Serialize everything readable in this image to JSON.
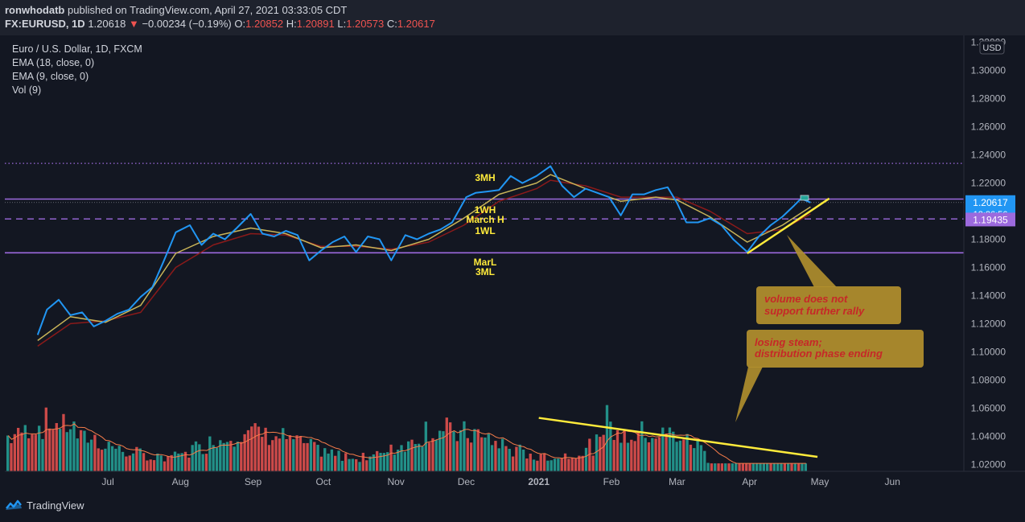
{
  "header": {
    "author": "ronwhodatb",
    "published": " published on TradingView.com, April 27, 2021 03:33:05 CDT",
    "symbol": "FX:EURUSD, 1D",
    "last": "1.20618",
    "arrow": "▼",
    "change": "−0.00234 (−0.19%)",
    "o_label": "O:",
    "o": "1.20852",
    "h_label": "H:",
    "h": "1.20891",
    "l_label": "L:",
    "l": "1.20573",
    "c_label": "C:",
    "c": "1.20617"
  },
  "legend": {
    "title": "Euro / U.S. Dollar, 1D, FXCM",
    "ema18": "EMA (18, close, 0)",
    "ema9": "EMA (9, close, 0)",
    "vol": "Vol (9)"
  },
  "footer": {
    "brand": "TradingView"
  },
  "colors": {
    "background": "#131722",
    "price": "#2196f3",
    "ema9": "#c9b458",
    "ema18": "#8b1a1a",
    "vol_up": "#26a69a",
    "vol_down": "#ef5350",
    "level": "#9c6ade",
    "trend": "#ffeb3b",
    "callout": "#b3902e",
    "callout_text": "#c62828"
  },
  "chart_data": {
    "type": "line",
    "title": "Euro / U.S. Dollar, 1D, FXCM",
    "currency_badge": "USD",
    "x_tick_labels": [
      "Jul",
      "Aug",
      "Sep",
      "Oct",
      "Nov",
      "Dec",
      "2021",
      "Feb",
      "Mar",
      "Apr",
      "May",
      "Jun"
    ],
    "y_tick_labels": [
      "1.32000",
      "1.30000",
      "1.28000",
      "1.26000",
      "1.24000",
      "1.22000",
      "1.20000",
      "1.18000",
      "1.16000",
      "1.14000",
      "1.12000",
      "1.10000",
      "1.08000",
      "1.06000",
      "1.04000",
      "1.02000"
    ],
    "ylim": [
      1.015,
      1.325
    ],
    "price_series": {
      "name": "EURUSD",
      "points": [
        [
          "2020-06-01",
          1.112
        ],
        [
          "2020-06-05",
          1.13
        ],
        [
          "2020-06-10",
          1.137
        ],
        [
          "2020-06-15",
          1.126
        ],
        [
          "2020-06-20",
          1.128
        ],
        [
          "2020-06-25",
          1.118
        ],
        [
          "2020-06-30",
          1.122
        ],
        [
          "2020-07-05",
          1.127
        ],
        [
          "2020-07-10",
          1.13
        ],
        [
          "2020-07-15",
          1.139
        ],
        [
          "2020-07-20",
          1.146
        ],
        [
          "2020-07-25",
          1.165
        ],
        [
          "2020-07-30",
          1.185
        ],
        [
          "2020-08-05",
          1.19
        ],
        [
          "2020-08-10",
          1.176
        ],
        [
          "2020-08-15",
          1.184
        ],
        [
          "2020-08-20",
          1.18
        ],
        [
          "2020-08-25",
          1.188
        ],
        [
          "2020-08-31",
          1.198
        ],
        [
          "2020-09-05",
          1.184
        ],
        [
          "2020-09-10",
          1.182
        ],
        [
          "2020-09-15",
          1.186
        ],
        [
          "2020-09-20",
          1.183
        ],
        [
          "2020-09-25",
          1.165
        ],
        [
          "2020-09-30",
          1.172
        ],
        [
          "2020-10-05",
          1.178
        ],
        [
          "2020-10-10",
          1.182
        ],
        [
          "2020-10-15",
          1.171
        ],
        [
          "2020-10-20",
          1.182
        ],
        [
          "2020-10-25",
          1.18
        ],
        [
          "2020-10-30",
          1.165
        ],
        [
          "2020-11-05",
          1.183
        ],
        [
          "2020-11-10",
          1.18
        ],
        [
          "2020-11-15",
          1.184
        ],
        [
          "2020-11-20",
          1.187
        ],
        [
          "2020-11-25",
          1.192
        ],
        [
          "2020-12-01",
          1.21
        ],
        [
          "2020-12-05",
          1.213
        ],
        [
          "2020-12-10",
          1.214
        ],
        [
          "2020-12-15",
          1.215
        ],
        [
          "2020-12-20",
          1.225
        ],
        [
          "2020-12-25",
          1.22
        ],
        [
          "2020-12-31",
          1.225
        ],
        [
          "2021-01-06",
          1.232
        ],
        [
          "2021-01-11",
          1.218
        ],
        [
          "2021-01-16",
          1.21
        ],
        [
          "2021-01-21",
          1.216
        ],
        [
          "2021-01-26",
          1.213
        ],
        [
          "2021-01-31",
          1.21
        ],
        [
          "2021-02-05",
          1.197
        ],
        [
          "2021-02-10",
          1.212
        ],
        [
          "2021-02-15",
          1.212
        ],
        [
          "2021-02-20",
          1.215
        ],
        [
          "2021-02-25",
          1.217
        ],
        [
          "2021-03-01",
          1.206
        ],
        [
          "2021-03-05",
          1.192
        ],
        [
          "2021-03-10",
          1.192
        ],
        [
          "2021-03-15",
          1.195
        ],
        [
          "2021-03-20",
          1.19
        ],
        [
          "2021-03-25",
          1.18
        ],
        [
          "2021-03-31",
          1.171
        ],
        [
          "2021-04-05",
          1.182
        ],
        [
          "2021-04-10",
          1.19
        ],
        [
          "2021-04-15",
          1.196
        ],
        [
          "2021-04-20",
          1.204
        ],
        [
          "2021-04-23",
          1.209
        ],
        [
          "2021-04-27",
          1.20617
        ]
      ]
    },
    "ema9_series": {
      "name": "EMA (9, close, 0)",
      "points": [
        [
          "2020-06-01",
          1.108
        ],
        [
          "2020-06-15",
          1.125
        ],
        [
          "2020-06-30",
          1.121
        ],
        [
          "2020-07-15",
          1.133
        ],
        [
          "2020-07-30",
          1.17
        ],
        [
          "2020-08-15",
          1.182
        ],
        [
          "2020-08-31",
          1.188
        ],
        [
          "2020-09-15",
          1.184
        ],
        [
          "2020-09-30",
          1.174
        ],
        [
          "2020-10-15",
          1.176
        ],
        [
          "2020-10-30",
          1.172
        ],
        [
          "2020-11-15",
          1.18
        ],
        [
          "2020-11-30",
          1.195
        ],
        [
          "2020-12-15",
          1.212
        ],
        [
          "2020-12-31",
          1.22
        ],
        [
          "2021-01-06",
          1.226
        ],
        [
          "2021-01-21",
          1.216
        ],
        [
          "2021-02-05",
          1.207
        ],
        [
          "2021-02-20",
          1.21
        ],
        [
          "2021-03-01",
          1.208
        ],
        [
          "2021-03-15",
          1.196
        ],
        [
          "2021-03-31",
          1.178
        ],
        [
          "2021-04-15",
          1.19
        ],
        [
          "2021-04-27",
          1.203
        ]
      ]
    },
    "ema18_series": {
      "name": "EMA (18, close, 0)",
      "points": [
        [
          "2020-06-01",
          1.104
        ],
        [
          "2020-06-15",
          1.12
        ],
        [
          "2020-06-30",
          1.122
        ],
        [
          "2020-07-15",
          1.128
        ],
        [
          "2020-07-30",
          1.16
        ],
        [
          "2020-08-15",
          1.176
        ],
        [
          "2020-08-31",
          1.184
        ],
        [
          "2020-09-15",
          1.183
        ],
        [
          "2020-09-30",
          1.175
        ],
        [
          "2020-10-15",
          1.175
        ],
        [
          "2020-10-30",
          1.173
        ],
        [
          "2020-11-15",
          1.178
        ],
        [
          "2020-11-30",
          1.19
        ],
        [
          "2020-12-15",
          1.207
        ],
        [
          "2020-12-31",
          1.216
        ],
        [
          "2021-01-06",
          1.222
        ],
        [
          "2021-01-21",
          1.218
        ],
        [
          "2021-02-05",
          1.21
        ],
        [
          "2021-02-20",
          1.21
        ],
        [
          "2021-03-01",
          1.21
        ],
        [
          "2021-03-15",
          1.2
        ],
        [
          "2021-03-31",
          1.184
        ],
        [
          "2021-04-15",
          1.187
        ],
        [
          "2021-04-27",
          1.198
        ]
      ]
    },
    "volume": {
      "name": "Vol (9)",
      "count": 230,
      "seed": 7,
      "max_bar_value": 1.091,
      "baseline_value": 1.015
    },
    "levels": [
      {
        "name": "dotted-top",
        "value": 1.234,
        "style": "dotted",
        "color": "#9c6ade"
      },
      {
        "name": "1WH",
        "value": 1.2086,
        "style": "solid",
        "color": "#9c6ade"
      },
      {
        "name": "March H",
        "value": 1.1945,
        "style": "dashed",
        "color": "#9c6ade"
      },
      {
        "name": "MarL",
        "value": 1.1704,
        "style": "solid",
        "color": "#9c6ade"
      }
    ],
    "level_labels": {
      "mh3": "3MH",
      "wh1": "1WH",
      "marh": "March H",
      "wl1": "1WL",
      "marl": "MarL",
      "ml3": "3ML"
    },
    "trendlines": [
      {
        "name": "price-uptrend",
        "from": [
          "2021-03-31",
          1.17
        ],
        "to": [
          "2021-05-05",
          1.209
        ]
      },
      {
        "name": "volume-downtrend",
        "from": [
          "2021-01-01",
          1.053
        ],
        "to": [
          "2021-04-30",
          1.0253
        ]
      }
    ],
    "price_badges": {
      "last": "1.20617",
      "countdown": "12:26:56",
      "level": "1.19435"
    },
    "callouts": {
      "c1_line1": "volume does not",
      "c1_line2": "support further rally",
      "c2_line1": "losing steam;",
      "c2_line2": "distribution phase ending"
    }
  }
}
